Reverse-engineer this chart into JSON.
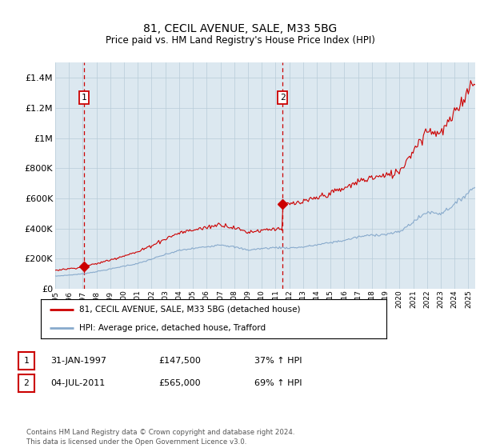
{
  "title": "81, CECIL AVENUE, SALE, M33 5BG",
  "subtitle": "Price paid vs. HM Land Registry's House Price Index (HPI)",
  "legend_line1": "81, CECIL AVENUE, SALE, M33 5BG (detached house)",
  "legend_line2": "HPI: Average price, detached house, Trafford",
  "sale1_label": "1",
  "sale1_date": "31-JAN-1997",
  "sale1_price": "£147,500",
  "sale1_hpi": "37% ↑ HPI",
  "sale1_year": 1997.08,
  "sale1_value": 147500,
  "sale2_label": "2",
  "sale2_date": "04-JUL-2011",
  "sale2_price": "£565,000",
  "sale2_hpi": "69% ↑ HPI",
  "sale2_year": 2011.5,
  "sale2_value": 565000,
  "footer": "Contains HM Land Registry data © Crown copyright and database right 2024.\nThis data is licensed under the Open Government Licence v3.0.",
  "line_color_red": "#cc0000",
  "line_color_blue": "#88aacc",
  "plot_bg": "#dce8f0",
  "grid_color": "#b8ccd8",
  "ylim": [
    0,
    1500000
  ],
  "xlim": [
    1995.0,
    2025.5
  ],
  "yticks": [
    0,
    200000,
    400000,
    600000,
    800000,
    1000000,
    1200000,
    1400000
  ]
}
